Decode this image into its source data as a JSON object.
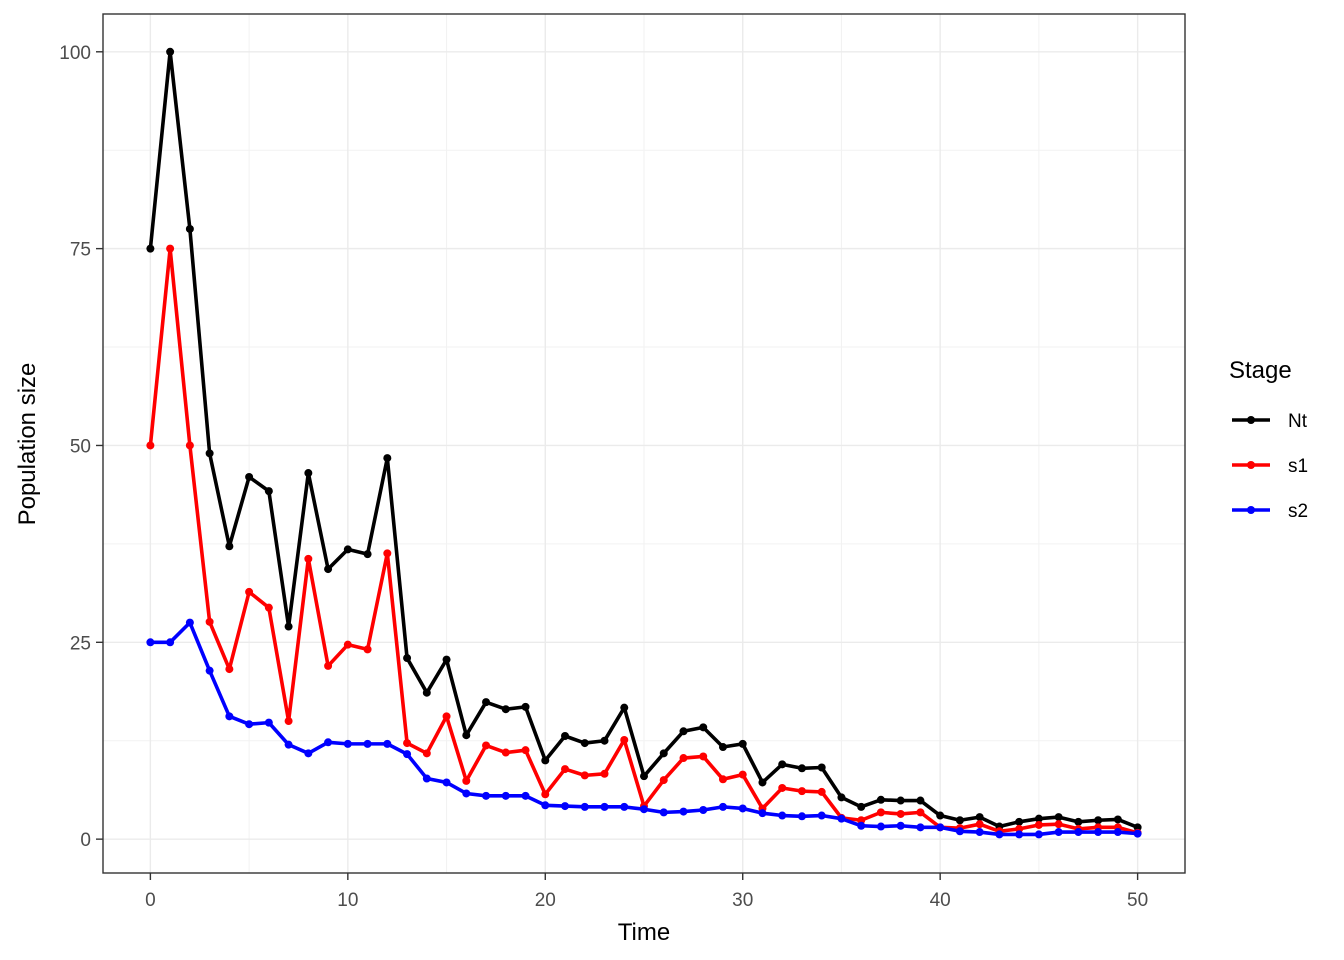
{
  "chart_data": {
    "type": "line",
    "xlabel": "Time",
    "ylabel": "Population size",
    "xlim": [
      -2.4,
      52.4
    ],
    "ylim": [
      -4.3,
      104.8
    ],
    "x_ticks": [
      0,
      10,
      20,
      30,
      40,
      50
    ],
    "y_ticks": [
      0,
      25,
      50,
      75,
      100
    ],
    "grid": true,
    "markers": true,
    "legend": {
      "title": "Stage",
      "position": "right"
    },
    "x": [
      0,
      1,
      2,
      3,
      4,
      5,
      6,
      7,
      8,
      9,
      10,
      11,
      12,
      13,
      14,
      15,
      16,
      17,
      18,
      19,
      20,
      21,
      22,
      23,
      24,
      25,
      26,
      27,
      28,
      29,
      30,
      31,
      32,
      33,
      34,
      35,
      36,
      37,
      38,
      39,
      40,
      41,
      42,
      43,
      44,
      45,
      46,
      47,
      48,
      49,
      50
    ],
    "series": [
      {
        "name": "Nt",
        "color": "#000000",
        "values": [
          75,
          100,
          77.5,
          49,
          37.2,
          46,
          44.2,
          27,
          46.5,
          34.3,
          36.8,
          36.2,
          48.4,
          23,
          18.6,
          22.8,
          13.2,
          17.4,
          16.5,
          16.8,
          10,
          13.1,
          12.2,
          12.5,
          16.7,
          8,
          10.9,
          13.7,
          14.2,
          11.7,
          12.1,
          7.2,
          9.5,
          9,
          9.1,
          5.3,
          4.1,
          5,
          4.9,
          4.9,
          3,
          2.4,
          2.8,
          1.6,
          2.2,
          2.6,
          2.8,
          2.2,
          2.4,
          2.5,
          1.5
        ]
      },
      {
        "name": "s1",
        "color": "#ff0000",
        "values": [
          50,
          75,
          50,
          27.6,
          21.6,
          31.4,
          29.4,
          15,
          35.6,
          22,
          24.7,
          24.1,
          36.3,
          12.2,
          10.9,
          15.6,
          7.4,
          11.9,
          11,
          11.3,
          5.7,
          8.9,
          8.1,
          8.3,
          12.6,
          4.2,
          7.5,
          10.3,
          10.5,
          7.6,
          8.2,
          3.9,
          6.5,
          6.1,
          6,
          2.7,
          2.4,
          3.4,
          3.2,
          3.4,
          1.5,
          1.4,
          1.9,
          1,
          1.3,
          1.8,
          1.9,
          1.3,
          1.5,
          1.5,
          0.8
        ]
      },
      {
        "name": "s2",
        "color": "#0000ff",
        "values": [
          25,
          25,
          27.5,
          21.4,
          15.6,
          14.6,
          14.8,
          12,
          10.9,
          12.3,
          12.1,
          12.1,
          12.1,
          10.8,
          7.7,
          7.2,
          5.8,
          5.5,
          5.5,
          5.5,
          4.3,
          4.2,
          4.1,
          4.1,
          4.1,
          3.8,
          3.4,
          3.5,
          3.7,
          4.1,
          3.9,
          3.3,
          3,
          2.9,
          3,
          2.6,
          1.7,
          1.6,
          1.7,
          1.5,
          1.5,
          1,
          0.9,
          0.6,
          0.6,
          0.6,
          0.9,
          0.9,
          0.9,
          0.9,
          0.7
        ]
      }
    ]
  }
}
